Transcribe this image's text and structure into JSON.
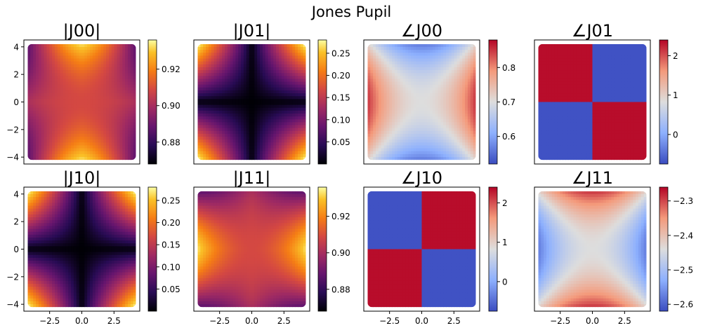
{
  "figure": {
    "title": "Jones Pupil"
  },
  "chart_data": [
    {
      "type": "heatmap",
      "title": "|J00|",
      "pattern": "mag_diag",
      "colormap": "inferno",
      "xlim": [
        -4.5,
        4.5
      ],
      "ylim": [
        -4.5,
        4.5
      ],
      "yticks": [
        -4,
        -2,
        0,
        2,
        4
      ],
      "xticks": [],
      "colorbar": {
        "min": 0.868,
        "max": 0.936,
        "ticks": [
          0.88,
          0.9,
          0.92
        ]
      }
    },
    {
      "type": "heatmap",
      "title": "|J01|",
      "pattern": "mag_off",
      "colormap": "inferno",
      "xlim": [
        -4.5,
        4.5
      ],
      "ylim": [
        -4.5,
        4.5
      ],
      "yticks": [],
      "xticks": [],
      "colorbar": {
        "min": 0.0,
        "max": 0.28,
        "ticks": [
          0.05,
          0.1,
          0.15,
          0.2,
          0.25
        ]
      }
    },
    {
      "type": "heatmap",
      "title": "∠J00",
      "pattern": "phase_x",
      "colormap": "coolwarm",
      "xlim": [
        -4.5,
        4.5
      ],
      "ylim": [
        -4.5,
        4.5
      ],
      "yticks": [],
      "xticks": [],
      "colorbar": {
        "min": 0.52,
        "max": 0.88,
        "ticks": [
          0.6,
          0.7,
          0.8
        ]
      }
    },
    {
      "type": "heatmap",
      "title": "∠J01",
      "pattern": "quad_a",
      "colormap": "coolwarm",
      "xlim": [
        -4.5,
        4.5
      ],
      "ylim": [
        -4.5,
        4.5
      ],
      "yticks": [],
      "xticks": [],
      "colorbar": {
        "min": -0.75,
        "max": 2.4,
        "ticks": [
          0,
          1,
          2
        ]
      }
    },
    {
      "type": "heatmap",
      "title": "|J10|",
      "pattern": "mag_off",
      "colormap": "inferno",
      "xlim": [
        -4.5,
        4.5
      ],
      "ylim": [
        -4.5,
        4.5
      ],
      "yticks": [
        -4,
        -2,
        0,
        2,
        4
      ],
      "xticks": [
        -2.5,
        0.0,
        2.5
      ],
      "colorbar": {
        "min": 0.0,
        "max": 0.28,
        "ticks": [
          0.05,
          0.1,
          0.15,
          0.2,
          0.25
        ]
      }
    },
    {
      "type": "heatmap",
      "title": "|J11|",
      "pattern": "mag_diag2",
      "colormap": "inferno",
      "xlim": [
        -4.5,
        4.5
      ],
      "ylim": [
        -4.5,
        4.5
      ],
      "yticks": [],
      "xticks": [
        -2.5,
        0.0,
        2.5
      ],
      "colorbar": {
        "min": 0.868,
        "max": 0.936,
        "ticks": [
          0.88,
          0.9,
          0.92
        ]
      }
    },
    {
      "type": "heatmap",
      "title": "∠J10",
      "pattern": "quad_b",
      "colormap": "coolwarm",
      "xlim": [
        -4.5,
        4.5
      ],
      "ylim": [
        -4.5,
        4.5
      ],
      "yticks": [],
      "xticks": [
        -2.5,
        0.0,
        2.5
      ],
      "colorbar": {
        "min": -0.75,
        "max": 2.4,
        "ticks": [
          0,
          1,
          2
        ]
      }
    },
    {
      "type": "heatmap",
      "title": "∠J11",
      "pattern": "phase_y",
      "colormap": "coolwarm",
      "xlim": [
        -4.5,
        4.5
      ],
      "ylim": [
        -4.5,
        4.5
      ],
      "yticks": [],
      "xticks": [
        -2.5,
        0.0,
        2.5
      ],
      "colorbar": {
        "min": -2.62,
        "max": -2.26,
        "ticks": [
          -2.6,
          -2.5,
          -2.4,
          -2.3
        ]
      }
    }
  ]
}
